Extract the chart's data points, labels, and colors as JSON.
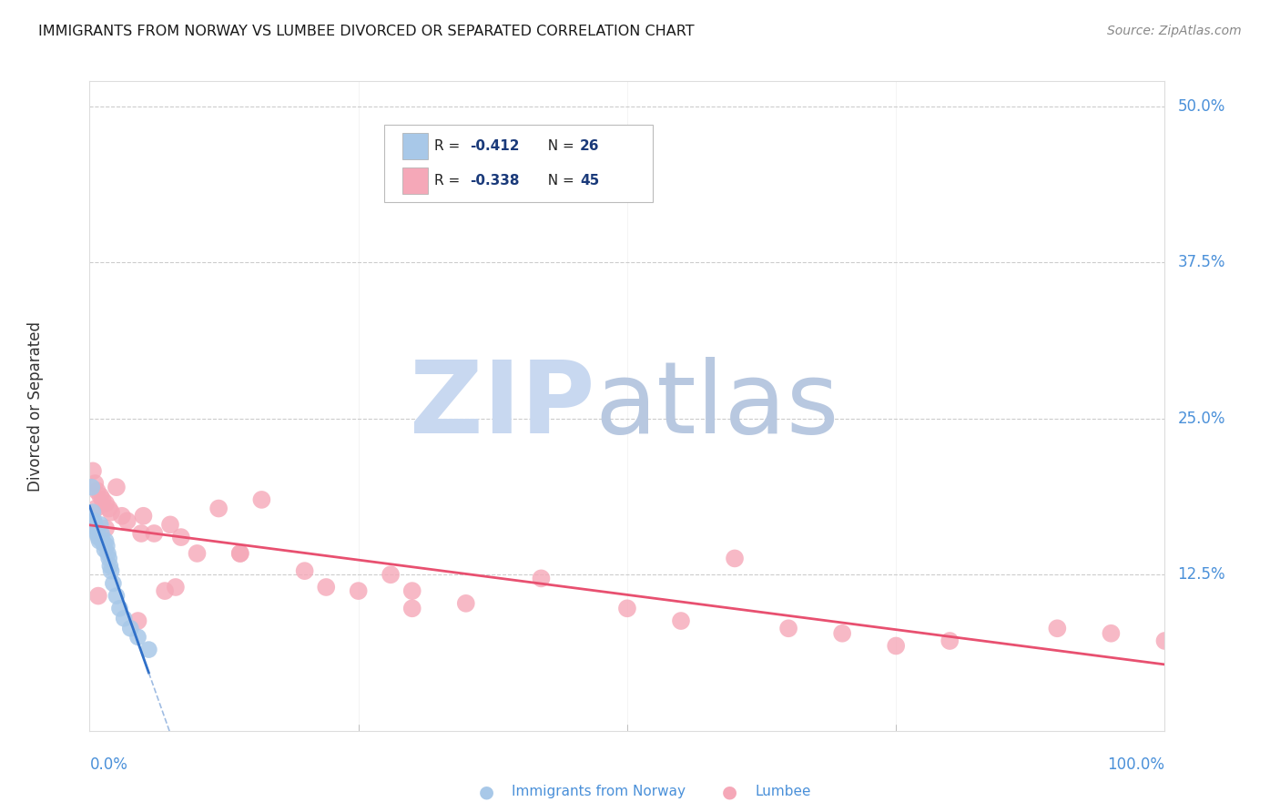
{
  "title": "IMMIGRANTS FROM NORWAY VS LUMBEE DIVORCED OR SEPARATED CORRELATION CHART",
  "source": "Source: ZipAtlas.com",
  "ylabel": "Divorced or Separated",
  "norway_color": "#a8c8e8",
  "lumbee_color": "#f5a8b8",
  "norway_line_color": "#3070c8",
  "lumbee_line_color": "#e85070",
  "norway_line_dashed_color": "#6090d0",
  "watermark_zip_color": "#c8d8f0",
  "watermark_atlas_color": "#b8c8e0",
  "background_color": "#ffffff",
  "grid_color": "#cccccc",
  "ytick_color": "#4a90d9",
  "xtick_color": "#4a90d9",
  "legend_text_color": "#1a3a6a",
  "legend_r_color": "#1a3a6a",
  "legend_val_color": "#1a3a6a",
  "legend_n_color": "#1a3a6a",
  "title_color": "#1a1a1a",
  "ylabel_color": "#333333",
  "norway_x": [
    0.2,
    0.3,
    0.4,
    0.5,
    0.6,
    0.7,
    0.8,
    0.9,
    1.0,
    1.1,
    1.2,
    1.3,
    1.4,
    1.5,
    1.6,
    1.7,
    1.8,
    1.9,
    2.0,
    2.2,
    2.5,
    2.8,
    3.2,
    3.8,
    4.5,
    5.5
  ],
  "norway_y": [
    19.5,
    17.5,
    16.8,
    16.5,
    16.2,
    15.8,
    15.5,
    15.2,
    16.5,
    15.8,
    15.2,
    15.0,
    14.5,
    15.2,
    14.8,
    14.2,
    13.8,
    13.2,
    12.8,
    11.8,
    10.8,
    9.8,
    9.0,
    8.2,
    7.5,
    6.5
  ],
  "lumbee_x": [
    0.3,
    0.5,
    0.7,
    1.0,
    1.2,
    1.5,
    1.8,
    2.0,
    2.5,
    3.0,
    3.5,
    5.0,
    6.0,
    7.5,
    8.0,
    10.0,
    12.0,
    14.0,
    16.0,
    20.0,
    25.0,
    28.0,
    30.0,
    35.0,
    42.0,
    50.0,
    55.0,
    60.0,
    65.0,
    70.0,
    75.0,
    80.0,
    90.0,
    95.0,
    100.0,
    4.5,
    1.5,
    0.6,
    0.8,
    4.8,
    7.0,
    8.5,
    14.0,
    22.0,
    30.0
  ],
  "lumbee_y": [
    20.8,
    19.8,
    19.2,
    18.8,
    18.5,
    18.2,
    17.8,
    17.5,
    19.5,
    17.2,
    16.8,
    17.2,
    15.8,
    16.5,
    11.5,
    14.2,
    17.8,
    14.2,
    18.5,
    12.8,
    11.2,
    12.5,
    11.2,
    10.2,
    12.2,
    9.8,
    8.8,
    13.8,
    8.2,
    7.8,
    6.8,
    7.2,
    8.2,
    7.8,
    7.2,
    8.8,
    16.2,
    17.8,
    10.8,
    15.8,
    11.2,
    15.5,
    14.2,
    11.5,
    9.8
  ],
  "xlim_pct": [
    0.0,
    100.0
  ],
  "ylim_pct": [
    0.0,
    52.0
  ],
  "yticks_pct": [
    12.5,
    25.0,
    37.5,
    50.0
  ],
  "xtick_positions": [
    0.0,
    100.0
  ],
  "xtick_labels": [
    "0.0%",
    "100.0%"
  ],
  "ytick_labels": [
    "12.5%",
    "25.0%",
    "37.5%",
    "50.0%"
  ],
  "bottom_legend_labels": [
    "Immigrants from Norway",
    "Lumbee"
  ]
}
